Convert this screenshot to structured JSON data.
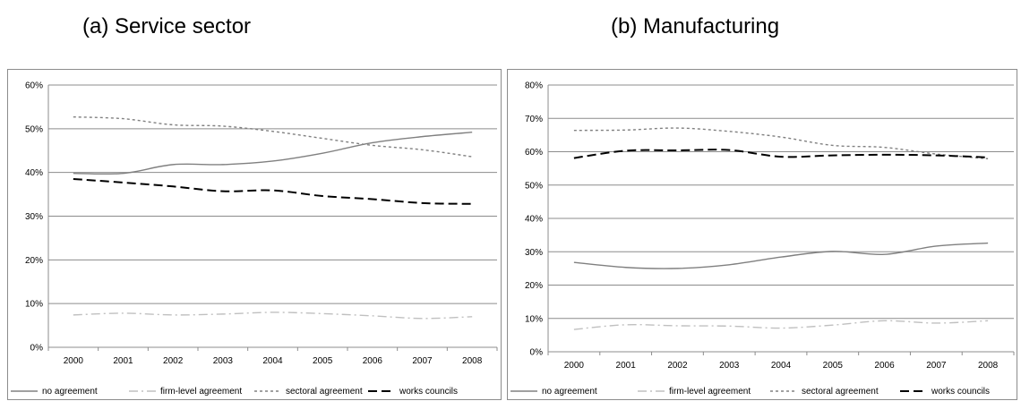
{
  "chart_data": [
    {
      "type": "line",
      "title": "(a) Service sector",
      "x": [
        "2000",
        "2001",
        "2002",
        "2003",
        "2004",
        "2005",
        "2006",
        "2007",
        "2008"
      ],
      "yticks": [
        "0%",
        "10%",
        "20%",
        "30%",
        "40%",
        "50%",
        "60%"
      ],
      "ylim": [
        0,
        60
      ],
      "grid": true,
      "legend": "bottom",
      "series": [
        {
          "name": "no agreement",
          "style": "solid",
          "color": "#808080",
          "values": [
            39.8,
            39.8,
            41.8,
            41.8,
            42.6,
            44.4,
            46.8,
            48.2,
            49.2
          ]
        },
        {
          "name": "firm-level agreement",
          "style": "dashdot",
          "color": "#c0c0c0",
          "values": [
            7.4,
            7.8,
            7.4,
            7.6,
            8.0,
            7.7,
            7.2,
            6.6,
            7.0
          ]
        },
        {
          "name": "sectoral agreement",
          "style": "dotted",
          "color": "#808080",
          "values": [
            52.7,
            52.3,
            50.9,
            50.6,
            49.4,
            47.8,
            46.2,
            45.2,
            43.6
          ]
        },
        {
          "name": "works councils",
          "style": "dashed",
          "color": "#000000",
          "values": [
            38.5,
            37.7,
            36.8,
            35.7,
            35.9,
            34.6,
            33.9,
            33.0,
            32.8
          ]
        }
      ]
    },
    {
      "type": "line",
      "title": "(b) Manufacturing",
      "x": [
        "2000",
        "2001",
        "2002",
        "2003",
        "2004",
        "2005",
        "2006",
        "2007",
        "2008"
      ],
      "yticks": [
        "0%",
        "10%",
        "20%",
        "30%",
        "40%",
        "50%",
        "60%",
        "70%",
        "80%"
      ],
      "ylim": [
        0,
        80
      ],
      "grid": true,
      "legend": "bottom",
      "series": [
        {
          "name": "no agreement",
          "style": "solid",
          "color": "#808080",
          "values": [
            26.8,
            25.3,
            25.0,
            26.1,
            28.4,
            30.1,
            29.2,
            31.7,
            32.6
          ]
        },
        {
          "name": "firm-level agreement",
          "style": "dashdot",
          "color": "#c0c0c0",
          "values": [
            6.7,
            8.1,
            7.8,
            7.7,
            7.1,
            8.0,
            9.3,
            8.6,
            9.3
          ]
        },
        {
          "name": "sectoral agreement",
          "style": "dotted",
          "color": "#808080",
          "values": [
            66.4,
            66.5,
            67.1,
            66.1,
            64.4,
            61.9,
            61.3,
            59.3,
            57.9
          ]
        },
        {
          "name": "works councils",
          "style": "dashed",
          "color": "#000000",
          "values": [
            58.1,
            60.3,
            60.4,
            60.5,
            58.5,
            58.9,
            59.1,
            58.9,
            58.3
          ]
        }
      ]
    }
  ]
}
